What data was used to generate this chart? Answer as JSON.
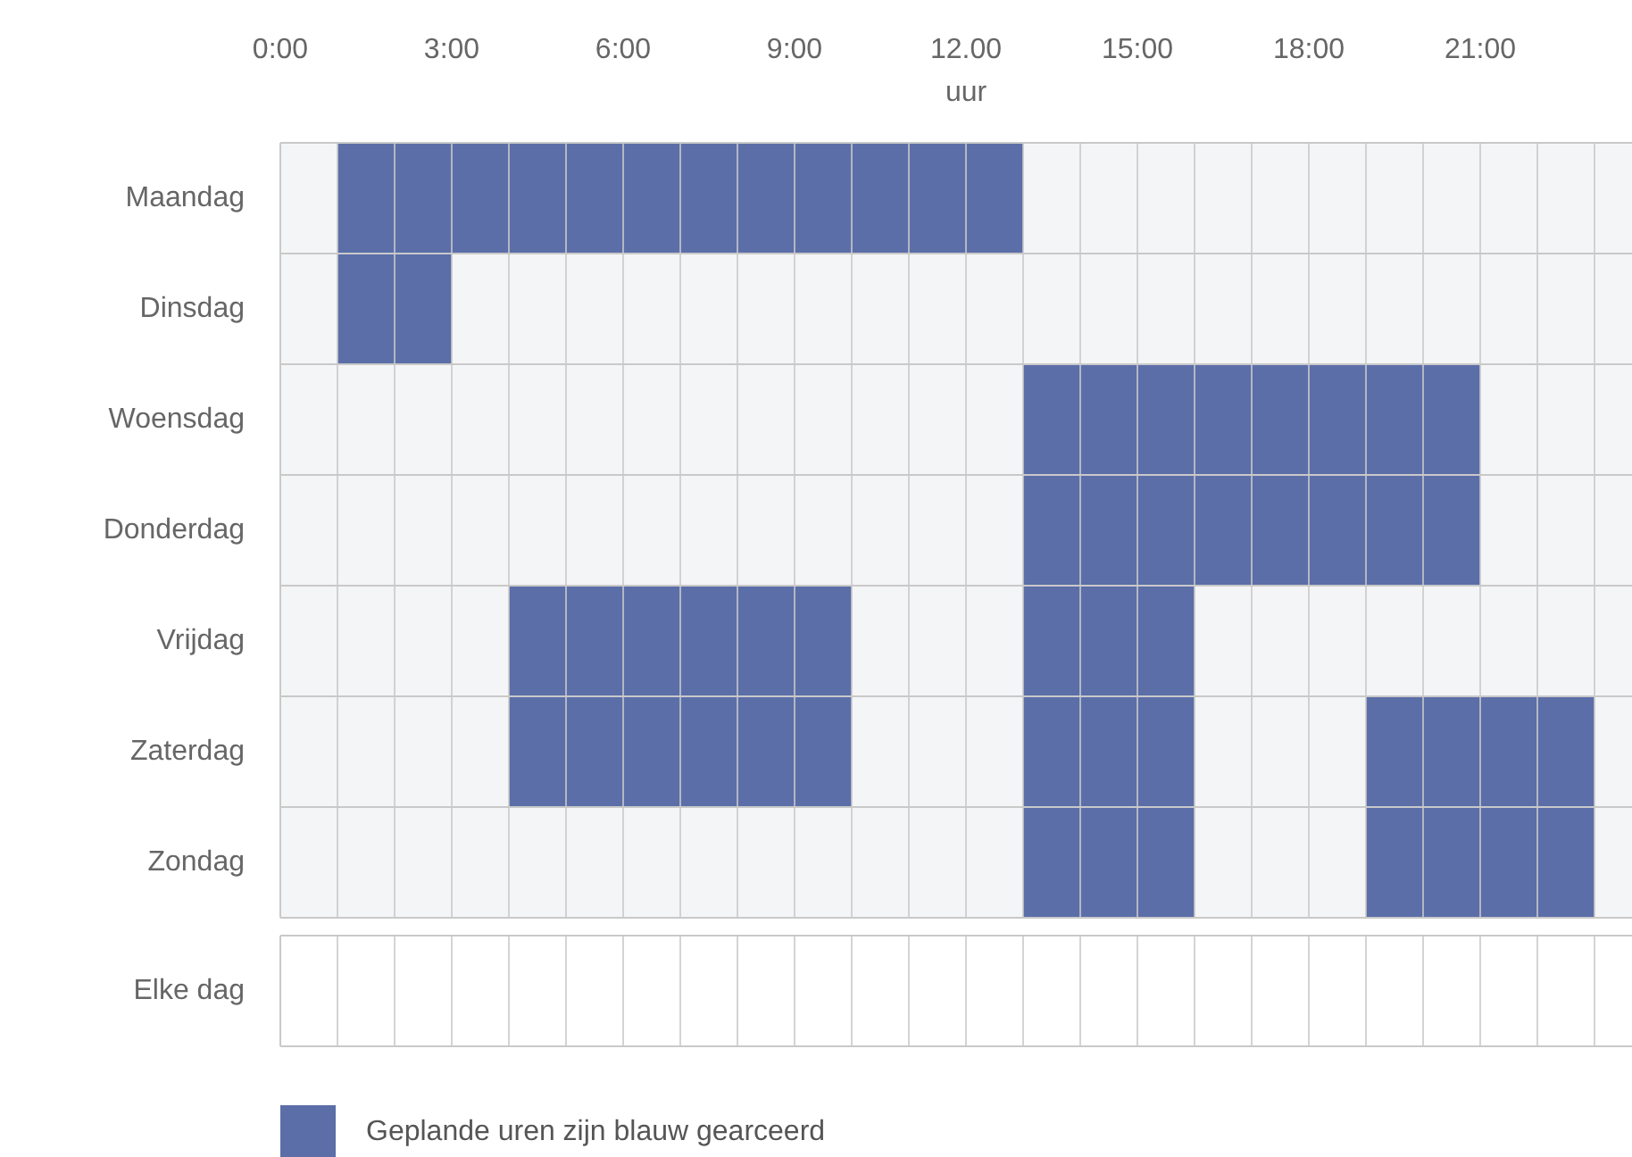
{
  "chart_data": [
    {
      "type": "bar",
      "orientation": "horizontal",
      "xlabel": "uur",
      "categories": [
        "Maandag",
        "Dinsdag",
        "Woensdag",
        "Donderdag",
        "Vrijdag",
        "Zaterdag",
        "Zondag"
      ],
      "xlim": [
        0,
        24
      ],
      "xticks": [
        {
          "value": 0,
          "label": "0:00"
        },
        {
          "value": 1,
          "label": null
        },
        {
          "value": 2,
          "label": null
        },
        {
          "value": 3,
          "label": "3:00"
        },
        {
          "value": 4,
          "label": null
        },
        {
          "value": 5,
          "label": null
        },
        {
          "value": 6,
          "label": "6:00"
        },
        {
          "value": 7,
          "label": null
        },
        {
          "value": 8,
          "label": null
        },
        {
          "value": 9,
          "label": "9:00"
        },
        {
          "value": 10,
          "label": null
        },
        {
          "value": 11,
          "label": null
        },
        {
          "value": 12,
          "label": "12.00"
        },
        {
          "value": 13,
          "label": null
        },
        {
          "value": 14,
          "label": null
        },
        {
          "value": 15,
          "label": "15:00"
        },
        {
          "value": 16,
          "label": null
        },
        {
          "value": 17,
          "label": null
        },
        {
          "value": 18,
          "label": "18:00"
        },
        {
          "value": 19,
          "label": null
        },
        {
          "value": 20,
          "label": null
        },
        {
          "value": 21,
          "label": "21:00"
        },
        {
          "value": 22,
          "label": null
        },
        {
          "value": 23,
          "label": null
        }
      ],
      "grid": true,
      "legend": "bottom left",
      "series": [
        {
          "name": "Geplande uren zijn blauw gearceerd",
          "color": "#5b6ea8",
          "base": [
            1,
            1,
            13,
            13,
            4,
            4,
            13
          ],
          "values": [
            12,
            2,
            8,
            8,
            6,
            6,
            3
          ]
        },
        {
          "color": "#5b6ea8",
          "base": [
            null,
            null,
            null,
            null,
            13,
            13,
            19
          ],
          "values": [
            null,
            null,
            null,
            null,
            3,
            3,
            4
          ]
        },
        {
          "color": "#5b6ea8",
          "base": [
            null,
            null,
            null,
            null,
            null,
            19,
            null
          ],
          "values": [
            null,
            null,
            null,
            null,
            null,
            4,
            null
          ]
        }
      ]
    },
    {
      "type": "bar",
      "orientation": "horizontal",
      "categories": [
        "Elke dag"
      ],
      "xlim": [
        0,
        24
      ],
      "xticks": [
        0,
        1,
        2,
        3,
        4,
        5,
        6,
        7,
        8,
        9,
        10,
        11,
        12,
        13,
        14,
        15,
        16,
        17,
        18,
        19,
        20,
        21,
        22,
        23
      ],
      "tick_labels": "y",
      "grid": true
    }
  ]
}
